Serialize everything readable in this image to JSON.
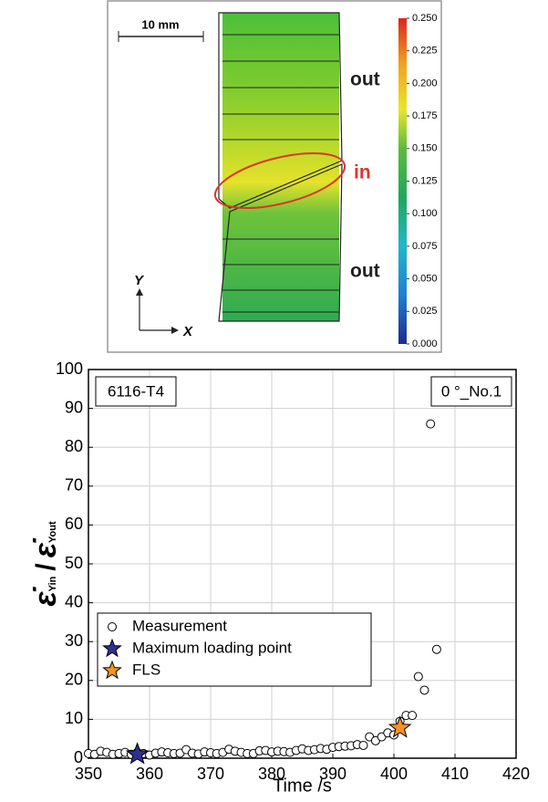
{
  "strain_map": {
    "scale_bar": "10 mm",
    "labels": {
      "top": "out",
      "middle": "in",
      "bottom": "out"
    },
    "axes": {
      "y": "Y",
      "x": "X"
    },
    "colorbar": {
      "clim": [
        0,
        0.25
      ],
      "ticks": [
        {
          "value": 0.25,
          "label": "0.250"
        },
        {
          "value": 0.225,
          "label": "0.225"
        },
        {
          "value": 0.2,
          "label": "0.200"
        },
        {
          "value": 0.175,
          "label": "0.175"
        },
        {
          "value": 0.15,
          "label": "0.150"
        },
        {
          "value": 0.125,
          "label": "0.125"
        },
        {
          "value": 0.1,
          "label": "0.100"
        },
        {
          "value": 0.075,
          "label": "0.075"
        },
        {
          "value": 0.05,
          "label": "0.050"
        },
        {
          "value": 0.025,
          "label": "0.025"
        },
        {
          "value": 0,
          "label": "0.000"
        }
      ]
    }
  },
  "chart_data": {
    "type": "scatter",
    "x_label": "Time /s",
    "y_label": {
      "numerator": "ε̇",
      "numerator_sub": "Yin",
      "separator": "/",
      "denominator": "ε̇",
      "denominator_sub": "Yout"
    },
    "annotations": [
      "6116-T4",
      "0 °_No.1"
    ],
    "xlim": [
      350,
      420
    ],
    "xticks": [
      350,
      360,
      370,
      380,
      390,
      400,
      410,
      420
    ],
    "ylim": [
      0,
      100
    ],
    "yticks": [
      0,
      10,
      20,
      30,
      40,
      50,
      60,
      70,
      80,
      90,
      100
    ],
    "grid": true,
    "legend": "lower left",
    "series": [
      {
        "name": "Measurement",
        "marker": "circle",
        "color": "#ffffff",
        "x": [
          350,
          351,
          352,
          353,
          354,
          355,
          356,
          357,
          358,
          359,
          360,
          361,
          362,
          363,
          364,
          365,
          366,
          367,
          368,
          369,
          370,
          371,
          372,
          373,
          374,
          375,
          376,
          377,
          378,
          379,
          380,
          381,
          382,
          383,
          384,
          385,
          386,
          387,
          388,
          389,
          390,
          391,
          392,
          393,
          394,
          395,
          396,
          397,
          398,
          399,
          400,
          401,
          402,
          403,
          404,
          405,
          406,
          407
        ],
        "values": [
          1.2,
          1.0,
          1.8,
          1.5,
          1.0,
          1.2,
          1.5,
          1.0,
          1.5,
          1.2,
          0.8,
          1.3,
          1.6,
          1.4,
          1.2,
          1.3,
          2.2,
          1.3,
          1.1,
          1.6,
          1.4,
          1.2,
          1.5,
          2.3,
          1.8,
          1.5,
          1.2,
          1.2,
          1.9,
          2.0,
          1.6,
          1.8,
          1.7,
          1.5,
          2.0,
          2.4,
          2.0,
          2.2,
          2.5,
          2.3,
          2.8,
          3.0,
          3.1,
          3.2,
          3.5,
          3.3,
          5.5,
          4.5,
          5.5,
          6.5,
          6.0,
          9.5,
          11,
          11,
          21,
          17.5,
          86,
          28
        ]
      },
      {
        "name": "Maximum loading point",
        "marker": "star",
        "color": "#2e3192",
        "x": [
          358
        ],
        "values": [
          1
        ]
      },
      {
        "name": "FLS",
        "marker": "star",
        "color": "#f7941d",
        "x": [
          401
        ],
        "values": [
          7.8
        ]
      }
    ]
  }
}
